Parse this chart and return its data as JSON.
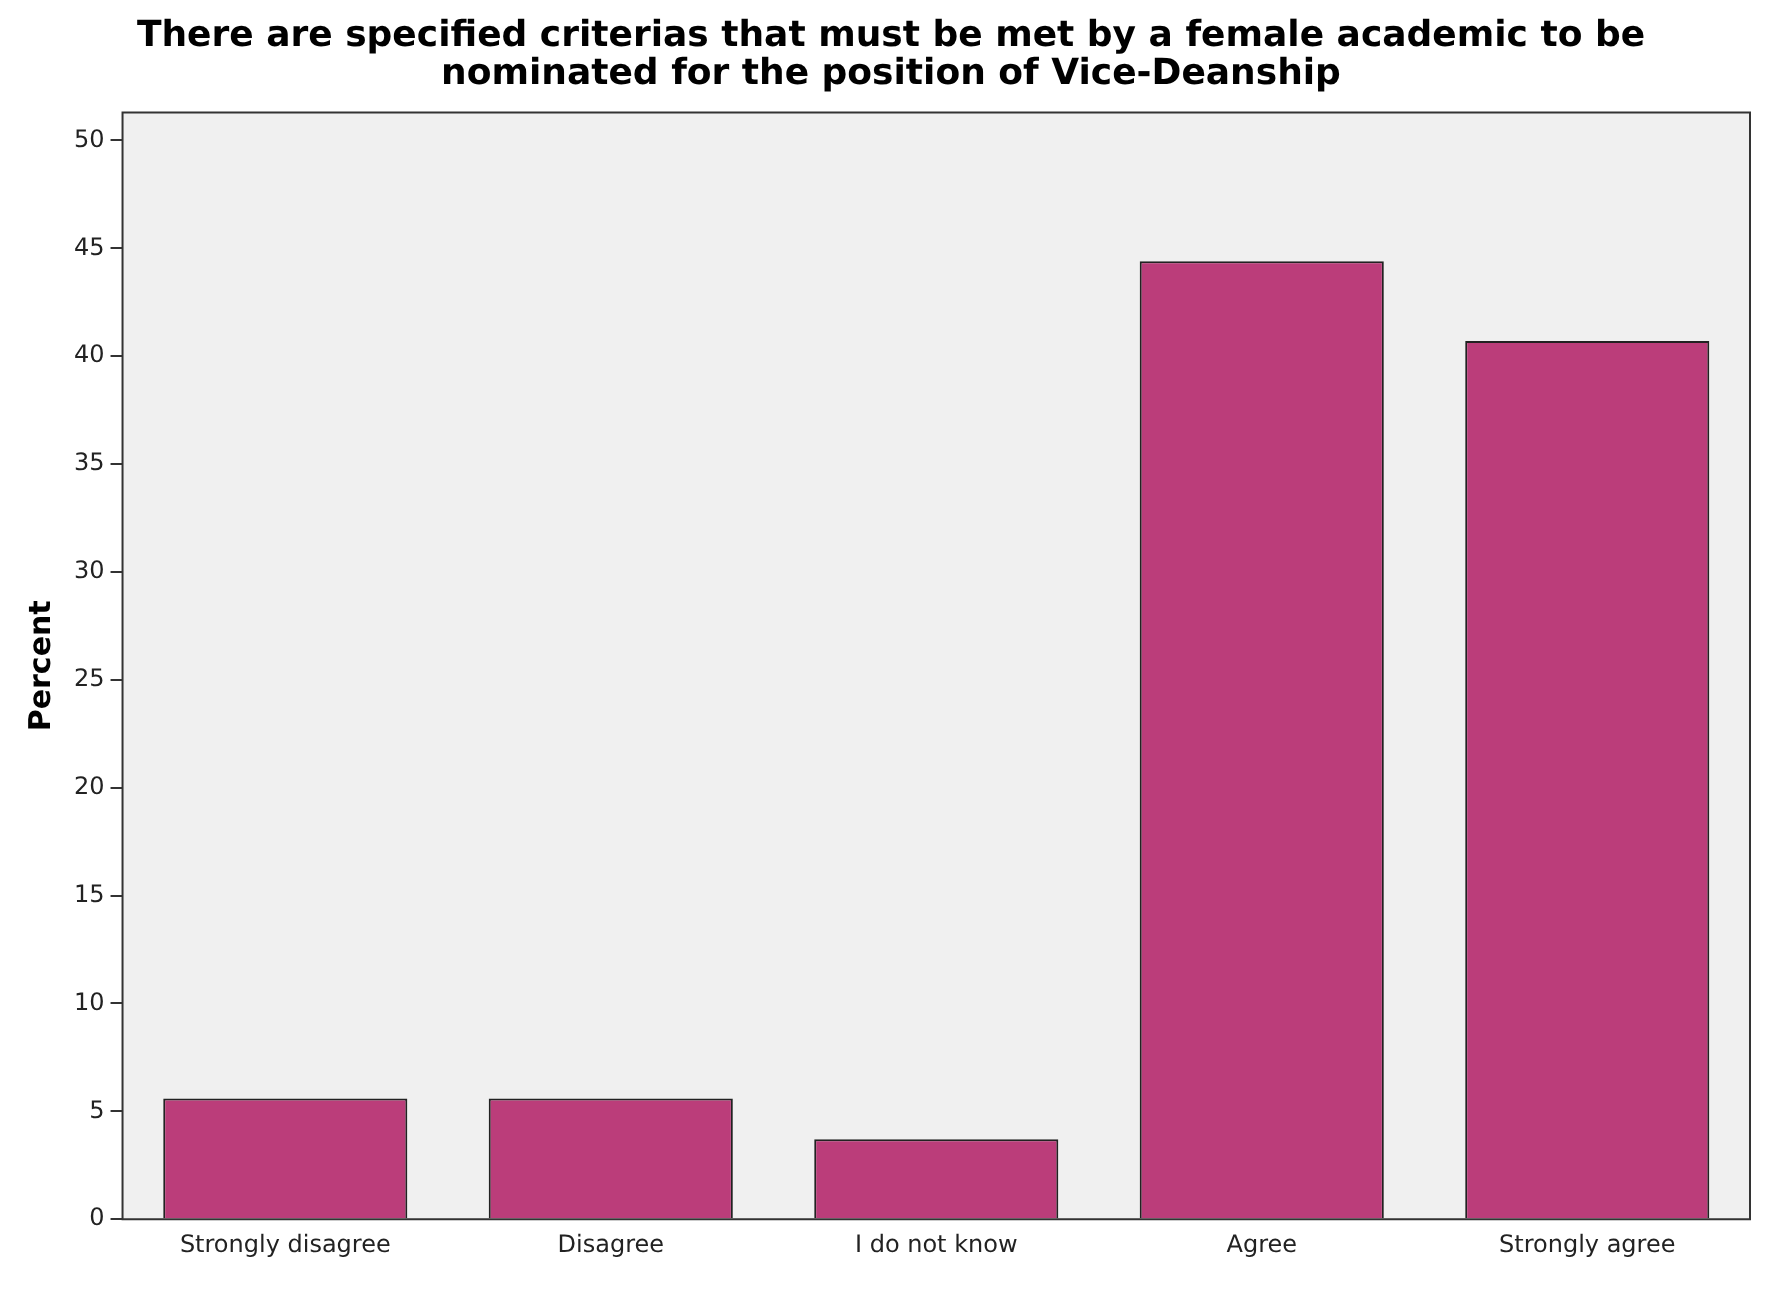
{
  "chart_data": {
    "type": "bar",
    "title": "There are specified criterias that must be met by a female academic to be nominated for the position of Vice-Deanship",
    "ylabel": "Percent",
    "categories": [
      "Strongly disagree",
      "Disagree",
      "I do not know",
      "Agree",
      "Strongly agree"
    ],
    "values": [
      5.6,
      5.6,
      3.7,
      44.4,
      40.7
    ],
    "color": "#bb3d7a",
    "ylim": [
      0,
      51.3
    ],
    "yticks": [
      0,
      5,
      10,
      15,
      20,
      25,
      30,
      35,
      40,
      45,
      50
    ],
    "grid": false,
    "legend": false
  }
}
